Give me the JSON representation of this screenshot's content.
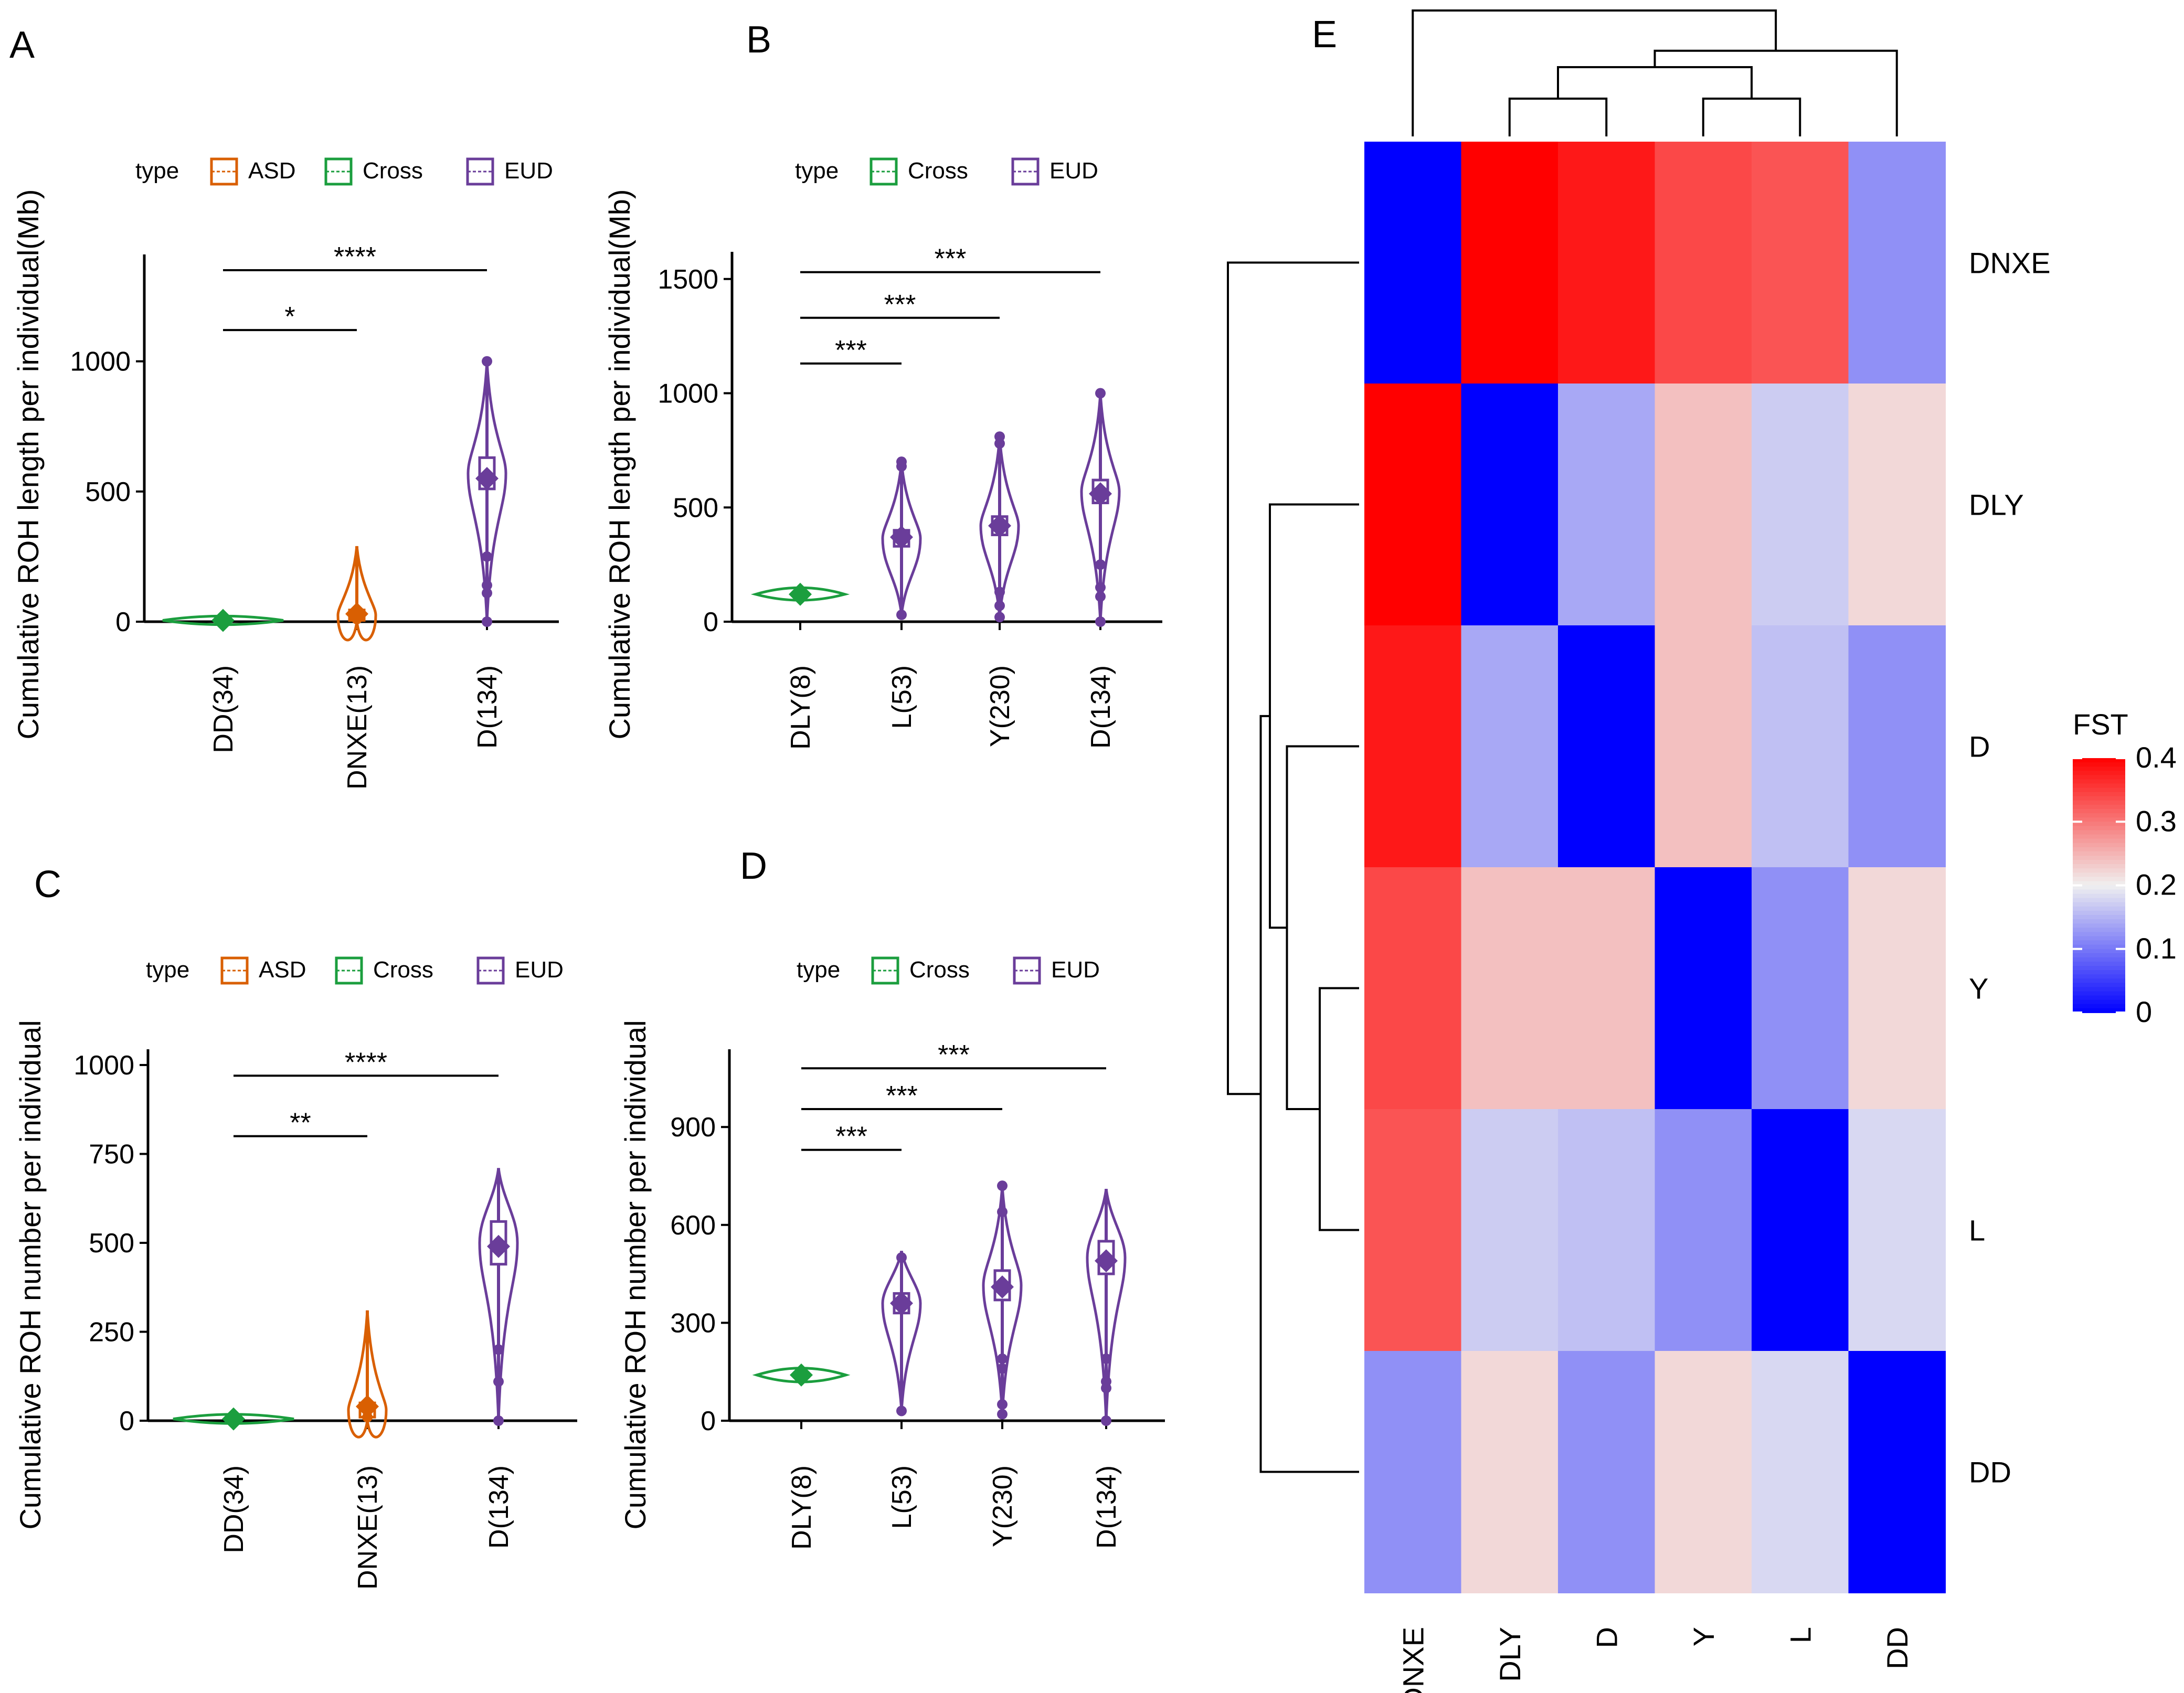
{
  "chart_data": [
    {
      "panel": "A",
      "type": "violin",
      "legend_title": "type",
      "legend": [
        {
          "label": "ASD",
          "color": "#D95F02"
        },
        {
          "label": "Cross",
          "color": "#1B9E3E"
        },
        {
          "label": "EUD",
          "color": "#6A3D9A"
        }
      ],
      "ylabel": "Cumulative ROH length per individual(Mb)",
      "yticks": [
        0,
        500,
        1000
      ],
      "ylim": [
        0,
        1350
      ],
      "categories": [
        "DD(34)",
        "DNXE(13)",
        "D(134)"
      ],
      "groups": [
        {
          "label": "DD(34)",
          "type": "Cross",
          "mean": 5,
          "q1": 0,
          "q3": 8,
          "min": 0,
          "max": 10,
          "outliers": []
        },
        {
          "label": "DNXE(13)",
          "type": "ASD",
          "mean": 30,
          "q1": 5,
          "q3": 45,
          "min": 0,
          "max": 290,
          "outliers": [
            10,
            40
          ]
        },
        {
          "label": "D(134)",
          "type": "EUD",
          "mean": 550,
          "q1": 510,
          "q3": 630,
          "min": 0,
          "max": 1000,
          "outliers": [
            0,
            110,
            140,
            250,
            1000
          ]
        }
      ],
      "comparisons": [
        {
          "from": 0,
          "to": 1,
          "label": "*",
          "y": 1120
        },
        {
          "from": 0,
          "to": 2,
          "label": "****",
          "y": 1350
        }
      ]
    },
    {
      "panel": "B",
      "type": "violin",
      "legend_title": "type",
      "legend": [
        {
          "label": "Cross",
          "color": "#1B9E3E"
        },
        {
          "label": "EUD",
          "color": "#6A3D9A"
        }
      ],
      "ylabel": "Cumulative ROH length per individual(Mb)",
      "yticks": [
        0,
        500,
        1000,
        1500
      ],
      "ylim": [
        0,
        1550
      ],
      "categories": [
        "DLY(8)",
        "L(53)",
        "Y(230)",
        "D(134)"
      ],
      "groups": [
        {
          "label": "DLY(8)",
          "type": "Cross",
          "mean": 120,
          "q1": 105,
          "q3": 140,
          "min": 100,
          "max": 145,
          "outliers": []
        },
        {
          "label": "L(53)",
          "type": "EUD",
          "mean": 370,
          "q1": 330,
          "q3": 400,
          "min": 30,
          "max": 700,
          "outliers": [
            30,
            680,
            700
          ]
        },
        {
          "label": "Y(230)",
          "type": "EUD",
          "mean": 420,
          "q1": 380,
          "q3": 460,
          "min": 20,
          "max": 810,
          "outliers": [
            20,
            70,
            130,
            780,
            810
          ]
        },
        {
          "label": "D(134)",
          "type": "EUD",
          "mean": 560,
          "q1": 520,
          "q3": 620,
          "min": 0,
          "max": 1000,
          "outliers": [
            0,
            110,
            150,
            250,
            1000
          ]
        }
      ],
      "comparisons": [
        {
          "from": 0,
          "to": 1,
          "label": "***",
          "y": 1130
        },
        {
          "from": 0,
          "to": 2,
          "label": "***",
          "y": 1330
        },
        {
          "from": 0,
          "to": 3,
          "label": "***",
          "y": 1530
        }
      ]
    },
    {
      "panel": "C",
      "type": "violin",
      "legend_title": "type",
      "legend": [
        {
          "label": "ASD",
          "color": "#D95F02"
        },
        {
          "label": "Cross",
          "color": "#1B9E3E"
        },
        {
          "label": "EUD",
          "color": "#6A3D9A"
        }
      ],
      "ylabel": "Cumulative ROH number per individual",
      "yticks": [
        0,
        250,
        500,
        750,
        1000
      ],
      "ylim": [
        0,
        1000
      ],
      "categories": [
        "DD(34)",
        "DNXE(13)",
        "D(134)"
      ],
      "groups": [
        {
          "label": "DD(34)",
          "type": "Cross",
          "mean": 5,
          "q1": 0,
          "q3": 8,
          "min": 0,
          "max": 10,
          "outliers": []
        },
        {
          "label": "DNXE(13)",
          "type": "ASD",
          "mean": 40,
          "q1": 10,
          "q3": 50,
          "min": 0,
          "max": 310,
          "outliers": [
            10,
            30
          ]
        },
        {
          "label": "D(134)",
          "type": "EUD",
          "mean": 490,
          "q1": 440,
          "q3": 560,
          "min": 0,
          "max": 710,
          "outliers": [
            0,
            110,
            200
          ]
        }
      ],
      "comparisons": [
        {
          "from": 0,
          "to": 1,
          "label": "**",
          "y": 800
        },
        {
          "from": 0,
          "to": 2,
          "label": "****",
          "y": 970
        }
      ]
    },
    {
      "panel": "D",
      "type": "violin",
      "legend_title": "type",
      "legend": [
        {
          "label": "Cross",
          "color": "#1B9E3E"
        },
        {
          "label": "EUD",
          "color": "#6A3D9A"
        }
      ],
      "ylabel": "Cumulative ROH number per individual",
      "yticks": [
        0,
        300,
        600,
        900
      ],
      "ylim": [
        0,
        1090
      ],
      "categories": [
        "DLY(8)",
        "L(53)",
        "Y(230)",
        "D(134)"
      ],
      "groups": [
        {
          "label": "DLY(8)",
          "type": "Cross",
          "mean": 140,
          "q1": 125,
          "q3": 155,
          "min": 120,
          "max": 160,
          "outliers": []
        },
        {
          "label": "L(53)",
          "type": "EUD",
          "mean": 360,
          "q1": 330,
          "q3": 390,
          "min": 30,
          "max": 520,
          "outliers": [
            30,
            500
          ]
        },
        {
          "label": "Y(230)",
          "type": "EUD",
          "mean": 410,
          "q1": 370,
          "q3": 460,
          "min": 20,
          "max": 720,
          "outliers": [
            20,
            50,
            160,
            190,
            640,
            720
          ]
        },
        {
          "label": "D(134)",
          "type": "EUD",
          "mean": 490,
          "q1": 450,
          "q3": 550,
          "min": 0,
          "max": 710,
          "outliers": [
            0,
            100,
            120,
            190
          ]
        }
      ],
      "comparisons": [
        {
          "from": 0,
          "to": 1,
          "label": "***",
          "y": 830
        },
        {
          "from": 0,
          "to": 2,
          "label": "***",
          "y": 955
        },
        {
          "from": 0,
          "to": 3,
          "label": "***",
          "y": 1080
        }
      ]
    },
    {
      "panel": "E",
      "type": "heatmap",
      "colorbar_title": "FST",
      "colorbar_ticks": [
        0,
        0.1,
        0.2,
        0.3,
        0.4
      ],
      "color_range": [
        0,
        0.4
      ],
      "color_low": "#0000FF",
      "color_mid": "#F0F0F0",
      "color_high": "#FF0000",
      "rows": [
        "DNXE",
        "DLY",
        "D",
        "Y",
        "L",
        "DD"
      ],
      "cols": [
        "DNXE",
        "DLY",
        "D",
        "Y",
        "L",
        "DD"
      ],
      "values": [
        [
          0,
          0.42,
          0.38,
          0.34,
          0.33,
          0.12
        ],
        [
          0.42,
          0,
          0.14,
          0.24,
          0.17,
          0.22
        ],
        [
          0.38,
          0.14,
          0,
          0.24,
          0.16,
          0.12
        ],
        [
          0.34,
          0.24,
          0.24,
          0,
          0.12,
          0.22
        ],
        [
          0.33,
          0.17,
          0.16,
          0.12,
          0,
          0.18
        ],
        [
          0.12,
          0.22,
          0.12,
          0.22,
          0.18,
          0
        ]
      ],
      "col_dendrogram": [
        [
          1,
          2,
          0.3
        ],
        [
          3,
          4,
          0.3
        ],
        [
          6,
          7,
          0.55
        ],
        [
          5,
          8,
          0.68
        ],
        [
          0,
          9,
          1.0
        ]
      ],
      "row_dendrogram": [
        [
          3,
          4,
          0.3
        ],
        [
          2,
          6,
          0.55
        ],
        [
          1,
          7,
          0.68
        ],
        [
          5,
          8,
          0.75
        ],
        [
          0,
          9,
          1.0
        ]
      ]
    }
  ]
}
